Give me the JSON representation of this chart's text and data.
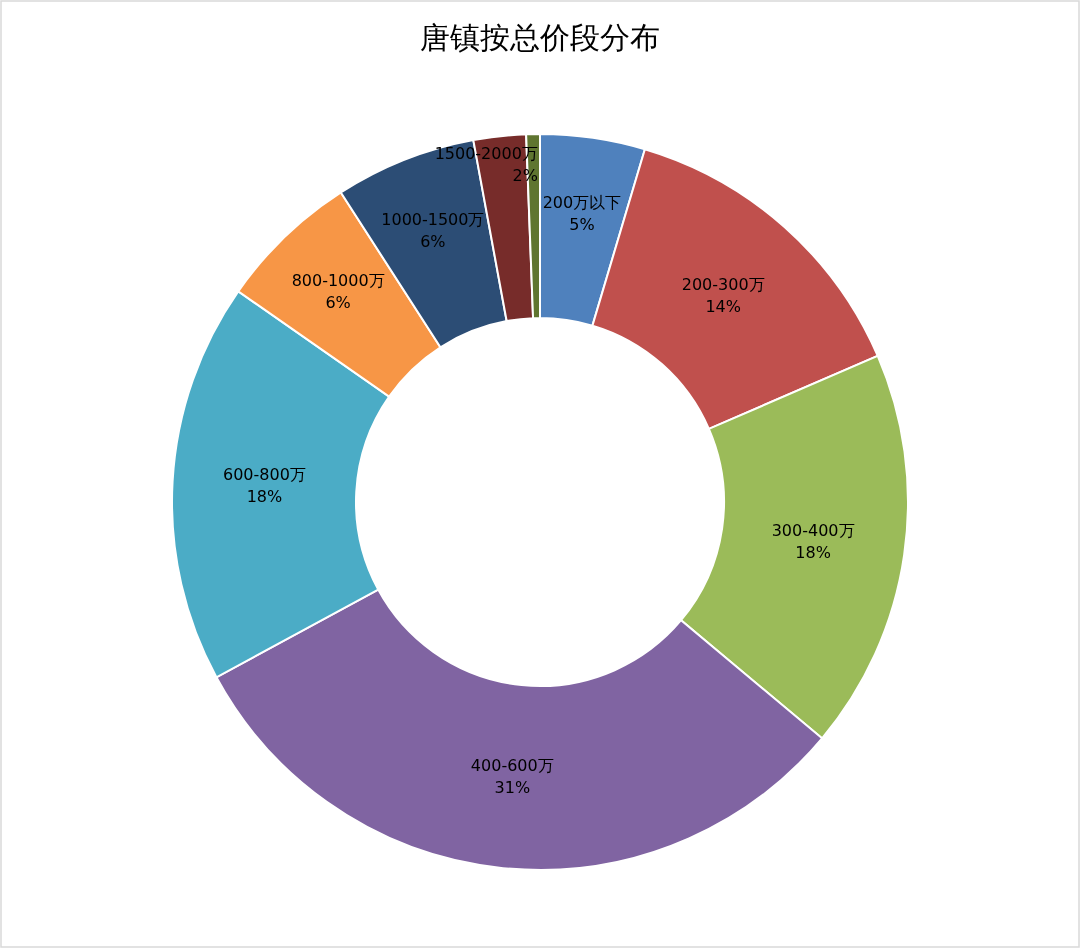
{
  "chart_data": {
    "type": "donut",
    "title": "唐镇按总价段分布",
    "categories": [
      "200万以下",
      "200-300万",
      "300-400万",
      "400-600万",
      "600-800万",
      "800-1000万",
      "1000-1500万",
      "1500-2000万",
      null
    ],
    "values": [
      4.6,
      13.9,
      17.6,
      31.0,
      17.6,
      6.2,
      6.2,
      2.3,
      0.6
    ],
    "value_labels": [
      "5%",
      "14%",
      "18%",
      "31%",
      "18%",
      "6%",
      "6%",
      "2%",
      null
    ],
    "colors": [
      "#4f81bd",
      "#c0504d",
      "#9bbb59",
      "#8064a2",
      "#4bacc6",
      "#f79646",
      "#2c4d75",
      "#772c2a",
      "#5f7530"
    ]
  }
}
